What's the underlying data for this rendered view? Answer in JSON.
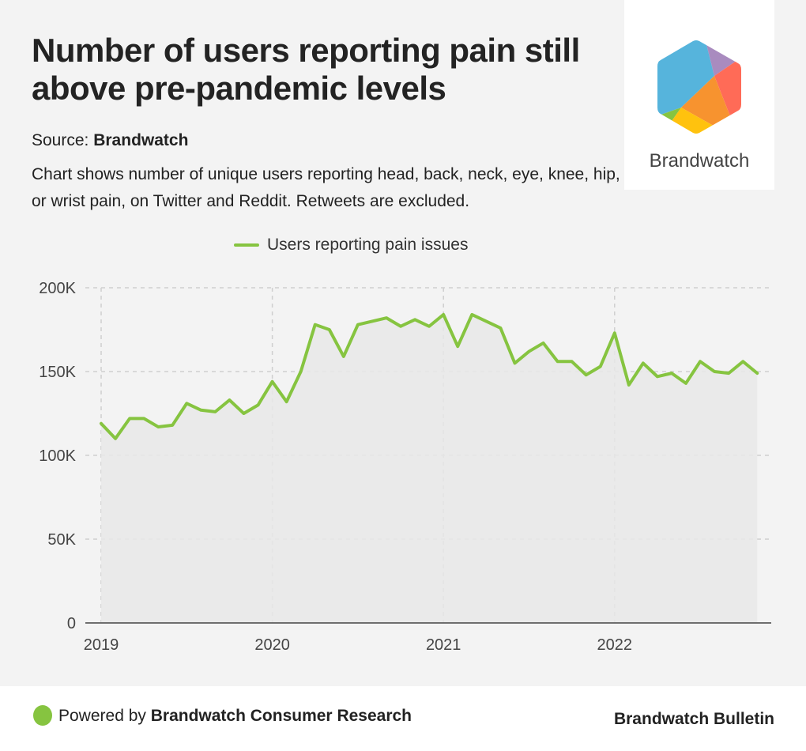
{
  "header": {
    "title": "Number of users reporting pain still above pre-pandemic levels",
    "source_label": "Source: ",
    "source_value": "Brandwatch",
    "description": "Chart shows number of unique users reporting head, back, neck, eye, knee, hip, or wrist pain, on Twitter and Reddit. Retweets are excluded."
  },
  "logo": {
    "text": "Brandwatch",
    "colors": [
      "#56b4dc",
      "#a98bbf",
      "#ff6b57",
      "#f7932f",
      "#ffc20e",
      "#86c440"
    ]
  },
  "footer": {
    "powered_prefix": "Powered by ",
    "powered_brand": "Brandwatch Consumer Research",
    "right_label": "Brandwatch Bulletin"
  },
  "chart_data": {
    "type": "area",
    "title": "",
    "xlabel": "",
    "ylabel": "",
    "legend": {
      "position": "top-center",
      "entries": [
        "Users reporting pain issues"
      ]
    },
    "series": [
      {
        "name": "Users reporting pain issues",
        "color": "#86c440",
        "fill": "#e7e7e7",
        "x": [
          "2019-01",
          "2019-02",
          "2019-03",
          "2019-04",
          "2019-05",
          "2019-06",
          "2019-07",
          "2019-08",
          "2019-09",
          "2019-10",
          "2019-11",
          "2019-12",
          "2020-01",
          "2020-02",
          "2020-03",
          "2020-04",
          "2020-05",
          "2020-06",
          "2020-07",
          "2020-08",
          "2020-09",
          "2020-10",
          "2020-11",
          "2020-12",
          "2021-01",
          "2021-02",
          "2021-03",
          "2021-04",
          "2021-05",
          "2021-06",
          "2021-07",
          "2021-08",
          "2021-09",
          "2021-10",
          "2021-11",
          "2021-12",
          "2022-01",
          "2022-02",
          "2022-03",
          "2022-04",
          "2022-05",
          "2022-06",
          "2022-07",
          "2022-08",
          "2022-09",
          "2022-10",
          "2022-11"
        ],
        "values": [
          119000,
          110000,
          122000,
          122000,
          117000,
          118000,
          131000,
          127000,
          126000,
          133000,
          125000,
          130000,
          144000,
          132000,
          150000,
          178000,
          175000,
          159000,
          178000,
          180000,
          182000,
          177000,
          181000,
          177000,
          184000,
          165000,
          184000,
          180000,
          176000,
          155000,
          162000,
          167000,
          156000,
          156000,
          148000,
          153000,
          173000,
          142000,
          155000,
          147000,
          149000,
          143000,
          156000,
          150000,
          149000,
          156000,
          149000
        ]
      }
    ],
    "x_ticks": [
      {
        "label": "2019",
        "index": 0
      },
      {
        "label": "2020",
        "index": 12
      },
      {
        "label": "2021",
        "index": 24
      },
      {
        "label": "2022",
        "index": 36
      }
    ],
    "y_ticks": [
      {
        "label": "0",
        "value": 0
      },
      {
        "label": "50K",
        "value": 50000
      },
      {
        "label": "100K",
        "value": 100000
      },
      {
        "label": "150K",
        "value": 150000
      },
      {
        "label": "200K",
        "value": 200000
      }
    ],
    "ylim": [
      0,
      200000
    ],
    "grid": true
  }
}
